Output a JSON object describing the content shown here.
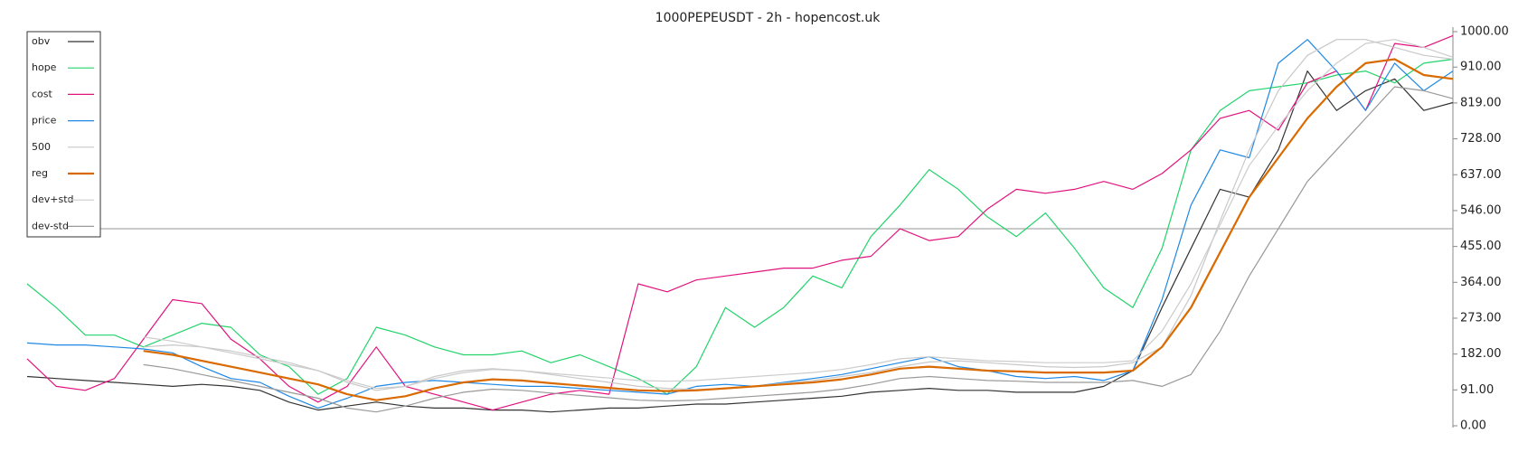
{
  "chart_data": {
    "type": "line",
    "title": "1000PEPEUSDT - 2h - hopencost.uk",
    "ylim": [
      0,
      1000
    ],
    "yticks": [
      {
        "value": 0,
        "label": "0.00"
      },
      {
        "value": 91,
        "label": "91.00"
      },
      {
        "value": 182,
        "label": "182.00"
      },
      {
        "value": 273,
        "label": "273.00"
      },
      {
        "value": 364,
        "label": "364.00"
      },
      {
        "value": 455,
        "label": "455.00"
      },
      {
        "value": 546,
        "label": "546.00"
      },
      {
        "value": 637,
        "label": "637.00"
      },
      {
        "value": 728,
        "label": "728.00"
      },
      {
        "value": 819,
        "label": "819.00"
      },
      {
        "value": 910,
        "label": "910.00"
      },
      {
        "value": 1000,
        "label": "1000.00"
      }
    ],
    "hline": 500,
    "legend": "upper-left",
    "series": [
      {
        "name": "obv",
        "color": "#333333",
        "width": 1.2,
        "values": [
          125,
          120,
          115,
          110,
          105,
          100,
          105,
          100,
          90,
          60,
          40,
          50,
          60,
          50,
          45,
          45,
          40,
          40,
          35,
          40,
          45,
          45,
          50,
          55,
          55,
          60,
          65,
          70,
          75,
          85,
          90,
          95,
          90,
          90,
          85,
          85,
          85,
          100,
          140,
          300,
          450,
          600,
          580,
          700,
          900,
          800,
          850,
          880,
          800,
          820
        ]
      },
      {
        "name": "hope",
        "color": "#22d36b",
        "width": 1.2,
        "values": [
          360,
          300,
          230,
          230,
          200,
          230,
          260,
          250,
          180,
          150,
          80,
          120,
          250,
          230,
          200,
          180,
          180,
          190,
          160,
          180,
          150,
          120,
          80,
          150,
          300,
          250,
          300,
          380,
          350,
          480,
          560,
          650,
          600,
          530,
          480,
          540,
          450,
          350,
          300,
          450,
          700,
          800,
          850,
          860,
          870,
          890,
          900,
          870,
          920,
          930
        ]
      },
      {
        "name": "cost",
        "color": "#e0137e",
        "width": 1.2,
        "values": [
          170,
          100,
          90,
          120,
          220,
          320,
          310,
          220,
          170,
          100,
          60,
          100,
          200,
          100,
          80,
          60,
          40,
          60,
          80,
          90,
          80,
          360,
          340,
          370,
          380,
          390,
          400,
          400,
          420,
          430,
          500,
          470,
          480,
          550,
          600,
          590,
          600,
          620,
          600,
          640,
          700,
          780,
          800,
          750,
          870,
          900,
          800,
          970,
          960,
          990
        ]
      },
      {
        "name": "price",
        "color": "#1e88e5",
        "width": 1.2,
        "values": [
          210,
          205,
          205,
          200,
          195,
          185,
          150,
          120,
          110,
          75,
          45,
          70,
          100,
          110,
          115,
          110,
          105,
          100,
          100,
          95,
          90,
          85,
          80,
          100,
          105,
          100,
          110,
          120,
          130,
          145,
          160,
          175,
          150,
          140,
          125,
          120,
          125,
          115,
          140,
          320,
          560,
          700,
          680,
          920,
          980,
          900,
          800,
          920,
          850,
          900
        ]
      },
      {
        "name": "500",
        "color": "#c8c8c8",
        "width": 1.2,
        "values": [
          null,
          null,
          null,
          null,
          200,
          205,
          200,
          190,
          175,
          160,
          140,
          110,
          90,
          100,
          125,
          140,
          145,
          140,
          130,
          120,
          110,
          100,
          95,
          92,
          95,
          100,
          108,
          115,
          125,
          135,
          150,
          162,
          165,
          160,
          155,
          150,
          148,
          150,
          160,
          200,
          330,
          520,
          700,
          850,
          940,
          980,
          980,
          960,
          940,
          930
        ]
      },
      {
        "name": "reg",
        "color": "#d96a00",
        "width": 2.2,
        "values": [
          null,
          null,
          null,
          null,
          190,
          180,
          165,
          150,
          135,
          120,
          105,
          80,
          65,
          75,
          95,
          110,
          118,
          115,
          108,
          102,
          96,
          90,
          88,
          90,
          95,
          100,
          105,
          110,
          118,
          130,
          145,
          150,
          145,
          140,
          138,
          135,
          135,
          135,
          140,
          200,
          300,
          440,
          580,
          680,
          780,
          860,
          920,
          930,
          890,
          880
        ]
      },
      {
        "name": "dev+std",
        "color": "#cccccc",
        "width": 1.2,
        "values": [
          null,
          null,
          null,
          null,
          225,
          215,
          200,
          185,
          170,
          155,
          140,
          115,
          95,
          100,
          120,
          135,
          143,
          140,
          133,
          127,
          121,
          115,
          113,
          115,
          120,
          125,
          130,
          135,
          143,
          155,
          170,
          175,
          170,
          165,
          163,
          160,
          160,
          160,
          165,
          240,
          360,
          510,
          660,
          760,
          850,
          920,
          970,
          980,
          960,
          935
        ]
      },
      {
        "name": "dev-std",
        "color": "#999999",
        "width": 1.2,
        "values": [
          null,
          null,
          null,
          null,
          155,
          145,
          130,
          115,
          100,
          85,
          70,
          45,
          35,
          50,
          70,
          85,
          93,
          90,
          83,
          77,
          71,
          65,
          63,
          65,
          70,
          75,
          80,
          85,
          93,
          105,
          120,
          125,
          120,
          115,
          113,
          110,
          110,
          110,
          115,
          100,
          130,
          240,
          380,
          500,
          620,
          700,
          780,
          860,
          850,
          830
        ]
      }
    ]
  }
}
